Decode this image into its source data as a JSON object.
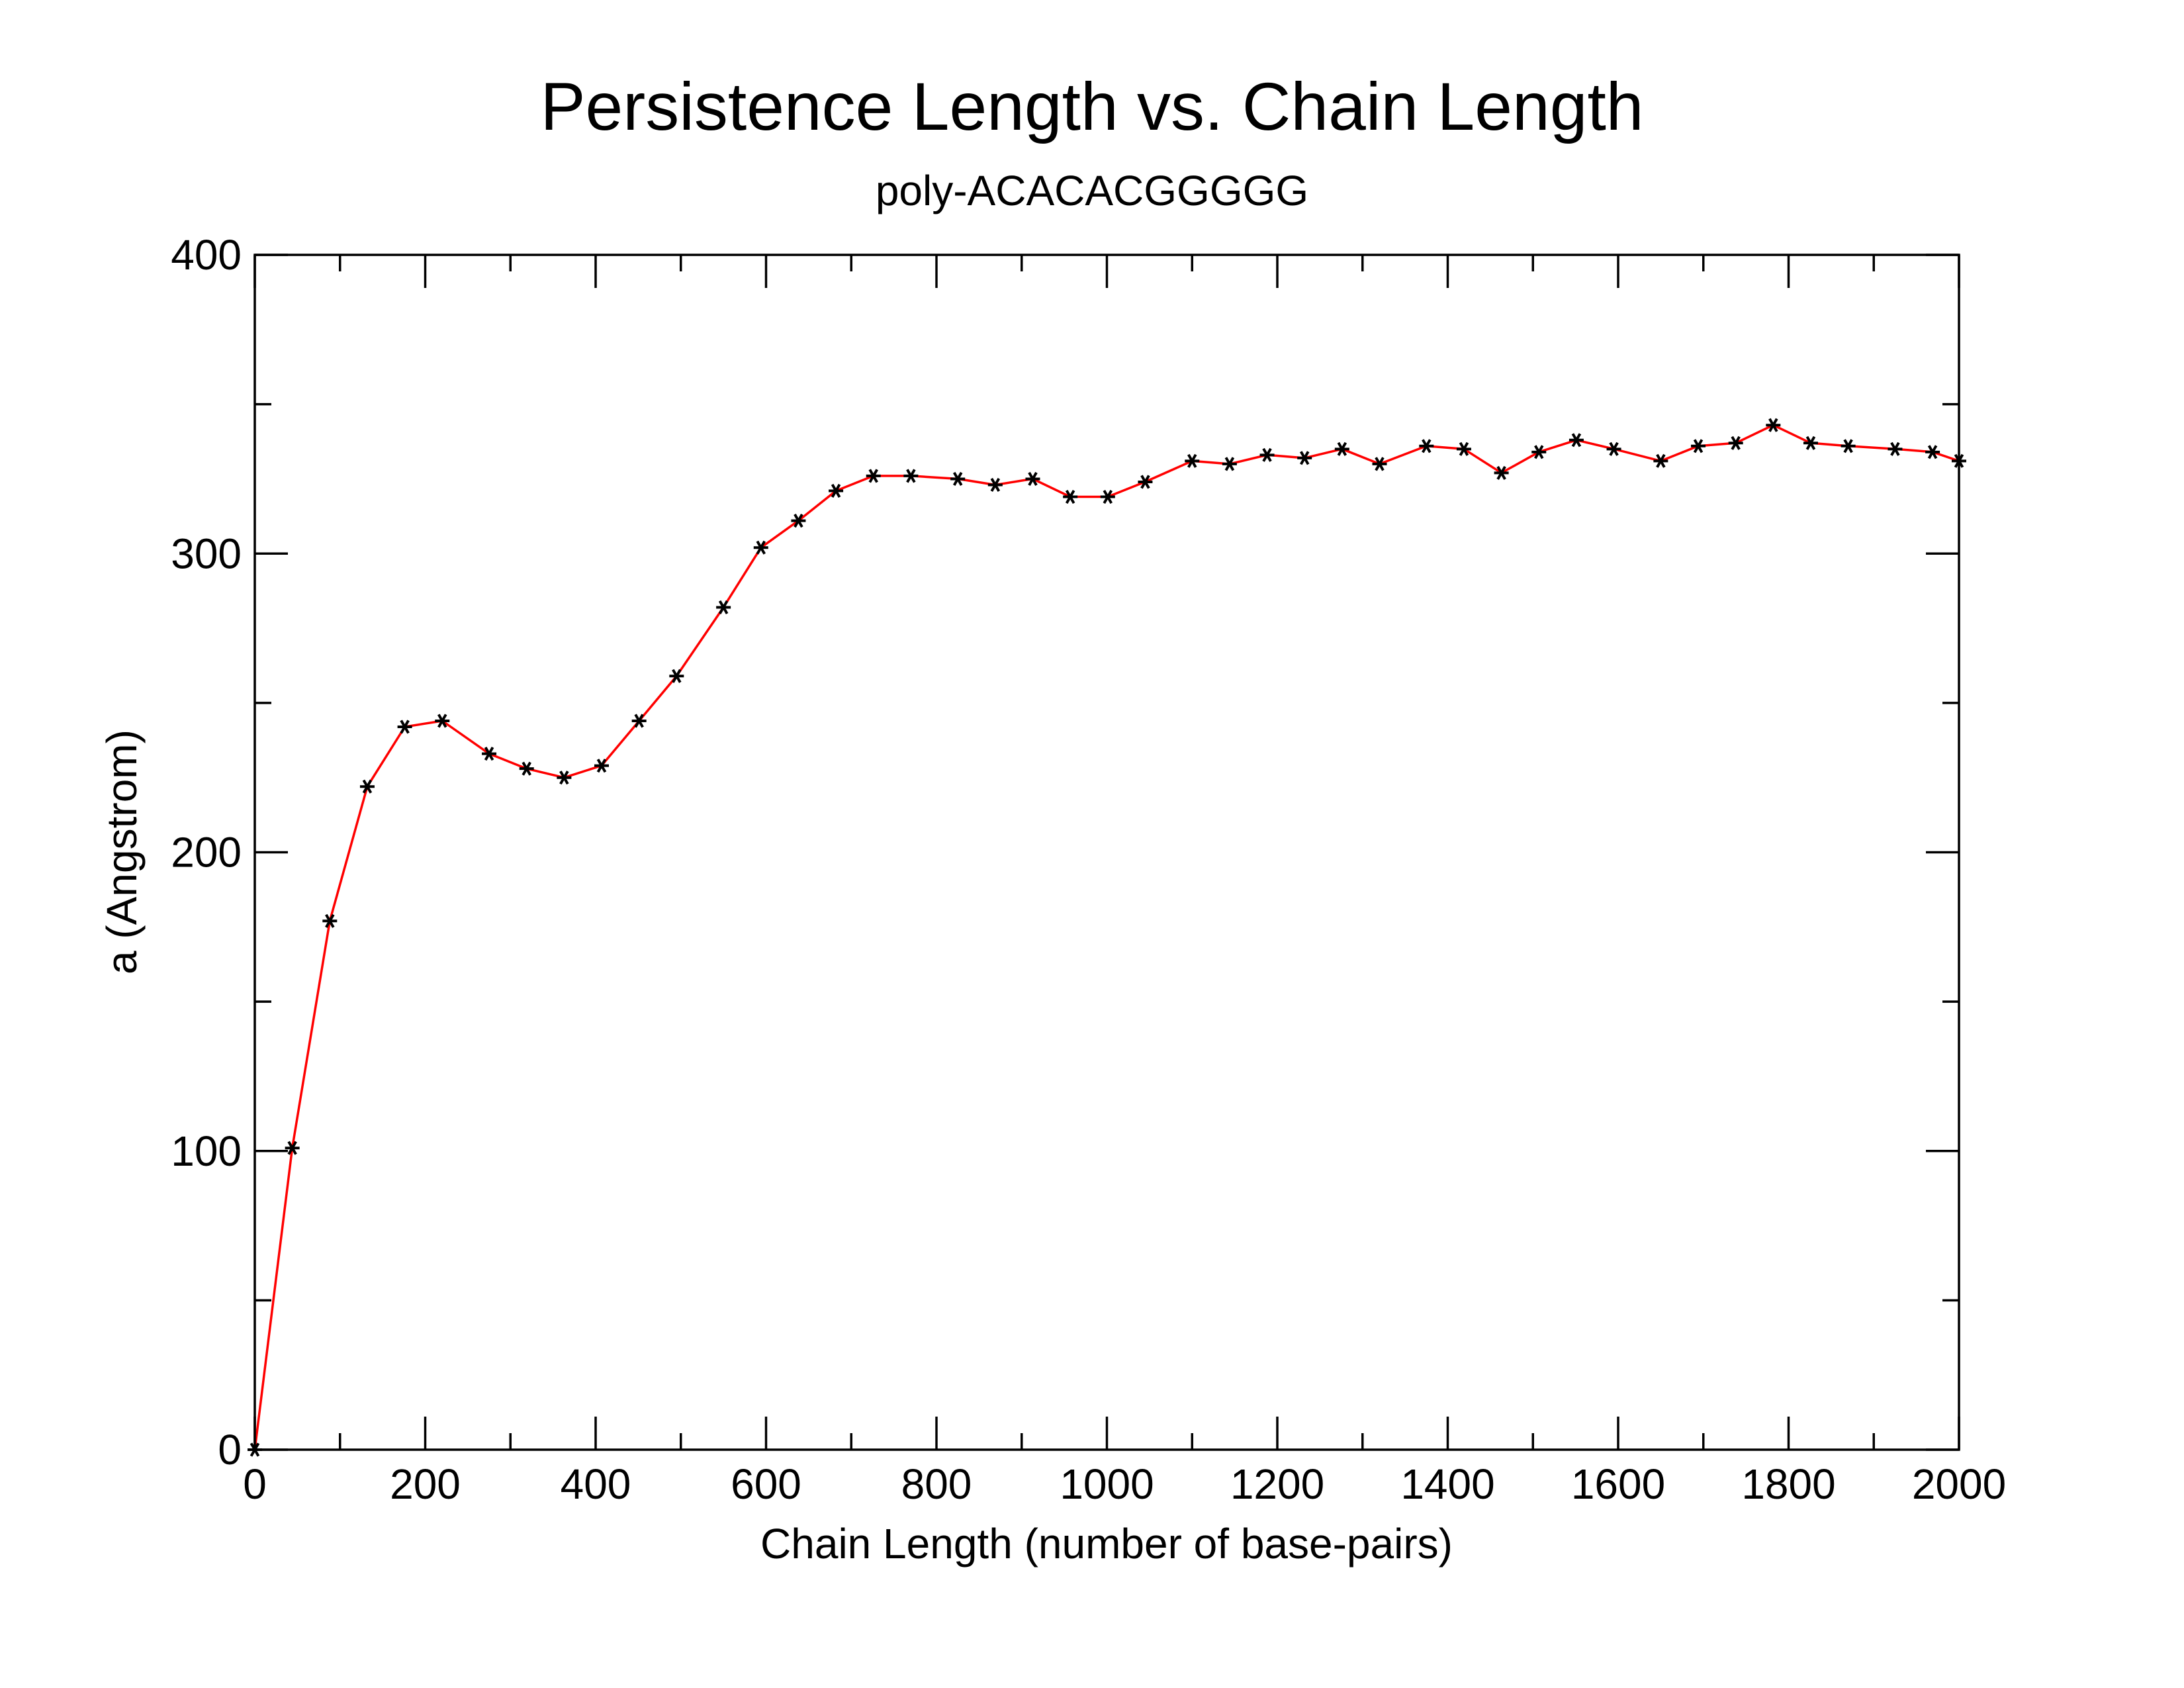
{
  "chart_data": {
    "type": "line",
    "title": "Persistence Length vs. Chain Length",
    "subtitle": "poly-ACACACGGGGG",
    "xlabel": "Chain Length (number of base-pairs)",
    "ylabel": "a (Angstrom)",
    "xlim": [
      0,
      2000
    ],
    "ylim": [
      0,
      400
    ],
    "x_ticks": [
      0,
      200,
      400,
      600,
      800,
      1000,
      1200,
      1400,
      1600,
      1800,
      2000
    ],
    "y_ticks": [
      0,
      100,
      200,
      300,
      400
    ],
    "grid": false,
    "legend": "none",
    "line_color": "#ff0000",
    "marker_color": "#000000",
    "marker": "asterisk",
    "series": [
      {
        "x": [
          0,
          44,
          88,
          132,
          176,
          220,
          275,
          319,
          363,
          407,
          451,
          495,
          550,
          594,
          638,
          682,
          726,
          770,
          825,
          869,
          913,
          957,
          1001,
          1045,
          1100,
          1144,
          1188,
          1232,
          1276,
          1320,
          1375,
          1419,
          1463,
          1507,
          1551,
          1595,
          1650,
          1694,
          1738,
          1782,
          1826,
          1870,
          1925,
          1969,
          2000
        ],
        "y": [
          0,
          101,
          177,
          222,
          242,
          244,
          233,
          228,
          225,
          229,
          244,
          259,
          282,
          302,
          311,
          321,
          326,
          326,
          325,
          323,
          325,
          319,
          319,
          324,
          331,
          330,
          333,
          332,
          335,
          330,
          336,
          335,
          327,
          334,
          338,
          335,
          331,
          336,
          337,
          343,
          337,
          336,
          335,
          334,
          331
        ]
      }
    ]
  }
}
